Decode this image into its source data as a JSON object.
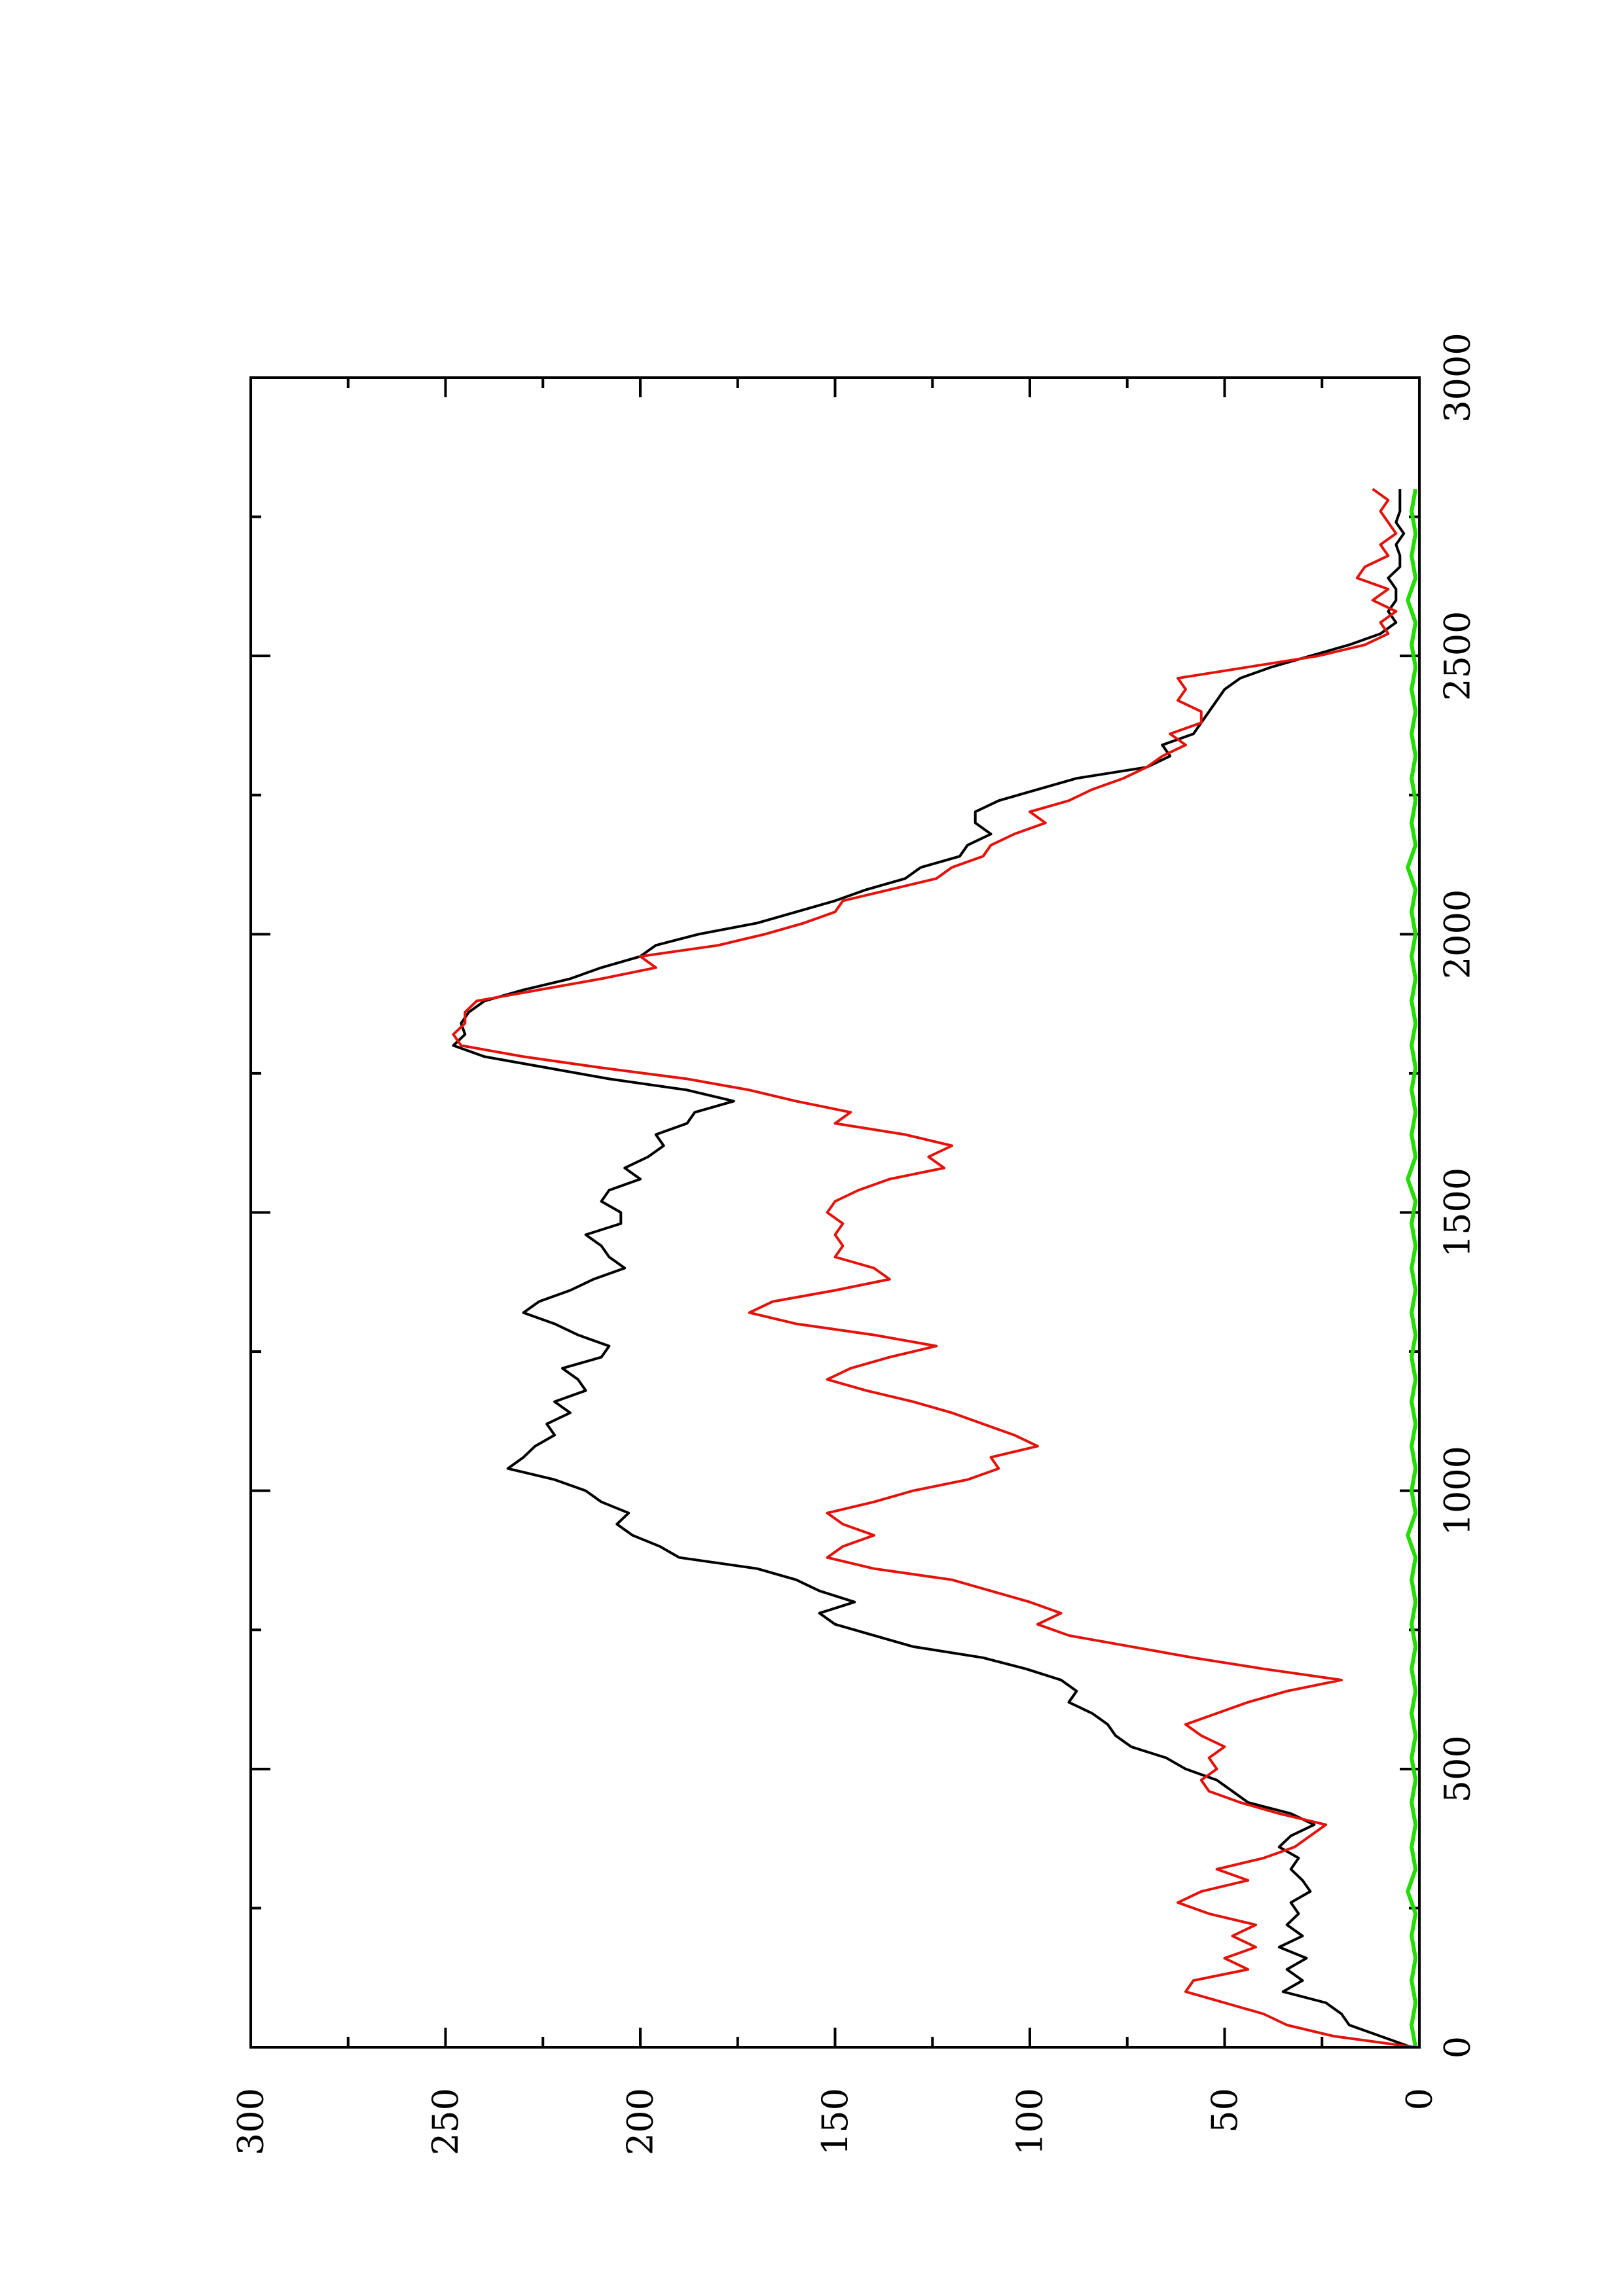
{
  "chart_data": {
    "type": "line",
    "title": "",
    "xlabel": "",
    "ylabel": "",
    "xlim": [
      0,
      3000
    ],
    "ylim": [
      0,
      300
    ],
    "orientation": "rotated-90-ccw",
    "x_major_ticks": [
      0,
      500,
      1000,
      1500,
      2000,
      2500,
      3000
    ],
    "x_minor_ticks": [
      250,
      750,
      1250,
      1750,
      2250,
      2750
    ],
    "y_major_ticks": [
      0,
      50,
      100,
      150,
      200,
      250,
      300
    ],
    "y_minor_ticks": [
      25,
      75,
      125,
      175,
      225,
      275
    ],
    "x_tick_labels": [
      "0",
      "500",
      "1000",
      "1500",
      "2000",
      "2500",
      "3000"
    ],
    "y_tick_labels": [
      "0",
      "50",
      "100",
      "150",
      "200",
      "250",
      "300"
    ],
    "grid": false,
    "legend": "none",
    "series": [
      {
        "color": "#000000",
        "x": [
          0,
          20,
          40,
          60,
          80,
          100,
          120,
          140,
          160,
          180,
          200,
          220,
          240,
          260,
          280,
          300,
          320,
          340,
          360,
          380,
          400,
          420,
          440,
          460,
          480,
          500,
          520,
          540,
          560,
          580,
          600,
          620,
          640,
          660,
          680,
          700,
          720,
          740,
          760,
          780,
          800,
          820,
          840,
          860,
          880,
          900,
          920,
          940,
          960,
          980,
          1000,
          1020,
          1040,
          1060,
          1080,
          1100,
          1120,
          1140,
          1160,
          1180,
          1200,
          1220,
          1240,
          1260,
          1280,
          1300,
          1320,
          1340,
          1360,
          1380,
          1400,
          1420,
          1440,
          1460,
          1480,
          1500,
          1520,
          1540,
          1560,
          1580,
          1600,
          1620,
          1640,
          1660,
          1680,
          1700,
          1720,
          1740,
          1760,
          1780,
          1800,
          1820,
          1840,
          1860,
          1880,
          1900,
          1920,
          1940,
          1960,
          1980,
          2000,
          2020,
          2040,
          2060,
          2080,
          2100,
          2120,
          2140,
          2160,
          2180,
          2200,
          2220,
          2240,
          2260,
          2280,
          2300,
          2320,
          2340,
          2360,
          2380,
          2400,
          2420,
          2440,
          2460,
          2480,
          2500,
          2520,
          2540,
          2560,
          2580,
          2600,
          2620,
          2640,
          2660,
          2680,
          2700,
          2720,
          2740,
          2760,
          2780,
          2800
        ],
        "y": [
          2,
          10,
          18,
          20,
          24,
          35,
          30,
          34,
          29,
          36,
          30,
          34,
          31,
          33,
          28,
          30,
          33,
          31,
          36,
          33,
          27,
          33,
          44,
          48,
          52,
          60,
          65,
          74,
          78,
          80,
          84,
          90,
          88,
          92,
          101,
          112,
          130,
          140,
          150,
          154,
          145,
          154,
          160,
          170,
          190,
          195,
          202,
          206,
          203,
          210,
          214,
          222,
          234,
          230,
          227,
          222,
          224,
          218,
          222,
          214,
          216,
          220,
          210,
          208,
          216,
          222,
          230,
          226,
          218,
          212,
          204,
          208,
          210,
          214,
          205,
          205,
          210,
          208,
          200,
          204,
          198,
          194,
          196,
          188,
          186,
          176,
          188,
          208,
          224,
          240,
          248,
          245,
          246,
          244,
          240,
          230,
          218,
          210,
          200,
          196,
          185,
          170,
          160,
          150,
          142,
          132,
          128,
          118,
          116,
          110,
          114,
          114,
          108,
          98,
          88,
          70,
          64,
          66,
          58,
          56,
          54,
          52,
          50,
          46,
          38,
          28,
          18,
          10,
          6,
          8,
          6,
          6,
          8,
          5,
          5,
          6,
          4,
          6,
          5,
          5,
          5
        ]
      },
      {
        "color": "#e3120b",
        "x": [
          0,
          20,
          40,
          60,
          80,
          100,
          120,
          140,
          160,
          180,
          200,
          220,
          240,
          260,
          280,
          300,
          320,
          340,
          360,
          380,
          400,
          420,
          440,
          460,
          480,
          500,
          520,
          540,
          560,
          580,
          600,
          620,
          640,
          660,
          680,
          700,
          720,
          740,
          760,
          780,
          800,
          820,
          840,
          860,
          880,
          900,
          920,
          940,
          960,
          980,
          1000,
          1020,
          1040,
          1060,
          1080,
          1100,
          1120,
          1140,
          1160,
          1180,
          1200,
          1220,
          1240,
          1260,
          1280,
          1300,
          1320,
          1340,
          1360,
          1380,
          1400,
          1420,
          1440,
          1460,
          1480,
          1500,
          1520,
          1540,
          1560,
          1580,
          1600,
          1620,
          1640,
          1660,
          1680,
          1700,
          1720,
          1740,
          1760,
          1780,
          1800,
          1820,
          1840,
          1860,
          1880,
          1900,
          1920,
          1940,
          1960,
          1980,
          2000,
          2020,
          2040,
          2060,
          2080,
          2100,
          2120,
          2140,
          2160,
          2180,
          2200,
          2220,
          2240,
          2260,
          2280,
          2300,
          2320,
          2340,
          2360,
          2380,
          2400,
          2420,
          2440,
          2460,
          2480,
          2500,
          2520,
          2540,
          2560,
          2580,
          2600,
          2620,
          2640,
          2660,
          2680,
          2700,
          2720,
          2740,
          2760,
          2780,
          2800
        ],
        "y": [
          1,
          22,
          34,
          40,
          50,
          60,
          58,
          44,
          50,
          42,
          48,
          42,
          54,
          62,
          56,
          44,
          52,
          40,
          32,
          28,
          24,
          36,
          46,
          54,
          56,
          52,
          54,
          50,
          56,
          60,
          52,
          44,
          34,
          20,
          40,
          58,
          74,
          90,
          98,
          92,
          100,
          110,
          120,
          140,
          152,
          148,
          140,
          148,
          152,
          140,
          130,
          116,
          108,
          110,
          98,
          104,
          112,
          120,
          130,
          142,
          152,
          146,
          136,
          124,
          140,
          160,
          172,
          166,
          150,
          136,
          140,
          150,
          148,
          150,
          148,
          152,
          150,
          144,
          136,
          122,
          126,
          120,
          132,
          150,
          146,
          160,
          172,
          188,
          210,
          230,
          246,
          248,
          245,
          245,
          242,
          226,
          210,
          196,
          200,
          180,
          168,
          158,
          150,
          148,
          136,
          124,
          120,
          112,
          110,
          104,
          96,
          100,
          90,
          84,
          76,
          70,
          66,
          60,
          64,
          56,
          56,
          62,
          60,
          62,
          44,
          26,
          14,
          8,
          10,
          6,
          12,
          8,
          16,
          14,
          8,
          10,
          6,
          8,
          10,
          8,
          12
        ]
      },
      {
        "color": "#22dd00",
        "x": [
          0,
          40,
          80,
          120,
          160,
          200,
          240,
          280,
          320,
          360,
          400,
          440,
          480,
          520,
          560,
          600,
          640,
          680,
          720,
          760,
          800,
          840,
          880,
          920,
          960,
          1000,
          1040,
          1080,
          1120,
          1160,
          1200,
          1240,
          1280,
          1320,
          1360,
          1400,
          1440,
          1480,
          1520,
          1560,
          1600,
          1640,
          1680,
          1720,
          1760,
          1800,
          1840,
          1880,
          1920,
          1960,
          2000,
          2040,
          2080,
          2120,
          2160,
          2200,
          2240,
          2280,
          2320,
          2360,
          2400,
          2440,
          2480,
          2520,
          2560,
          2600,
          2640,
          2680,
          2720,
          2760,
          2800
        ],
        "y": [
          1,
          2,
          1,
          2,
          1,
          2,
          1,
          3,
          1,
          2,
          1,
          2,
          1,
          2,
          1,
          2,
          1,
          2,
          1,
          2,
          1,
          2,
          1,
          3,
          1,
          2,
          1,
          2,
          1,
          2,
          1,
          2,
          1,
          2,
          1,
          2,
          1,
          2,
          1,
          3,
          1,
          2,
          1,
          2,
          1,
          2,
          1,
          2,
          1,
          2,
          1,
          2,
          1,
          3,
          1,
          2,
          1,
          2,
          1,
          2,
          1,
          2,
          1,
          2,
          1,
          3,
          1,
          2,
          1,
          2,
          1
        ]
      }
    ]
  }
}
